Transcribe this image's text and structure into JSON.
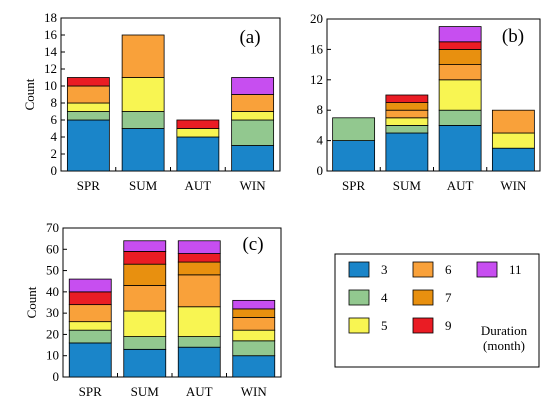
{
  "chart_data": [
    {
      "type": "bar",
      "stacked": true,
      "panel_label": "(a)",
      "ylabel": "Count",
      "ylim": [
        0,
        18
      ],
      "yticks": [
        0,
        2,
        4,
        6,
        8,
        10,
        12,
        14,
        16,
        18
      ],
      "categories": [
        "SPR",
        "SUM",
        "AUT",
        "WIN"
      ],
      "series": [
        {
          "name": "3",
          "values": [
            6,
            5,
            4,
            3
          ]
        },
        {
          "name": "4",
          "values": [
            1,
            2,
            0,
            3
          ]
        },
        {
          "name": "5",
          "values": [
            1,
            4,
            1,
            1
          ]
        },
        {
          "name": "6",
          "values": [
            2,
            5,
            0,
            2
          ]
        },
        {
          "name": "7",
          "values": [
            0,
            0,
            0,
            0
          ]
        },
        {
          "name": "9",
          "values": [
            1,
            0,
            1,
            0
          ]
        },
        {
          "name": "11",
          "values": [
            0,
            0,
            0,
            2
          ]
        }
      ]
    },
    {
      "type": "bar",
      "stacked": true,
      "panel_label": "(b)",
      "ylabel": "",
      "ylim": [
        0,
        20
      ],
      "yticks": [
        0,
        4,
        8,
        12,
        16,
        20
      ],
      "categories": [
        "SPR",
        "SUM",
        "AUT",
        "WIN"
      ],
      "series": [
        {
          "name": "3",
          "values": [
            4,
            5,
            6,
            3
          ]
        },
        {
          "name": "4",
          "values": [
            3,
            1,
            2,
            0
          ]
        },
        {
          "name": "5",
          "values": [
            0,
            1,
            4,
            2
          ]
        },
        {
          "name": "6",
          "values": [
            0,
            1,
            2,
            3
          ]
        },
        {
          "name": "7",
          "values": [
            0,
            1,
            2,
            0
          ]
        },
        {
          "name": "9",
          "values": [
            0,
            1,
            1,
            0
          ]
        },
        {
          "name": "11",
          "values": [
            0,
            0,
            2,
            0
          ]
        }
      ]
    },
    {
      "type": "bar",
      "stacked": true,
      "panel_label": "(c)",
      "ylabel": "Count",
      "ylim": [
        0,
        70
      ],
      "yticks": [
        0,
        10,
        20,
        30,
        40,
        50,
        60,
        70
      ],
      "categories": [
        "SPR",
        "SUM",
        "AUT",
        "WIN"
      ],
      "series": [
        {
          "name": "3",
          "values": [
            16,
            13,
            14,
            10
          ]
        },
        {
          "name": "4",
          "values": [
            6,
            6,
            5,
            7
          ]
        },
        {
          "name": "5",
          "values": [
            4,
            12,
            14,
            5
          ]
        },
        {
          "name": "6",
          "values": [
            8,
            12,
            15,
            6
          ]
        },
        {
          "name": "7",
          "values": [
            0,
            10,
            6,
            4
          ]
        },
        {
          "name": "9",
          "values": [
            6,
            6,
            4,
            0
          ]
        },
        {
          "name": "11",
          "values": [
            6,
            5,
            6,
            4
          ]
        }
      ]
    }
  ],
  "legend": {
    "items": [
      {
        "label": "3",
        "color": "#1a85c9"
      },
      {
        "label": "6",
        "color": "#f9a13a"
      },
      {
        "label": "11",
        "color": "#c74ef0"
      },
      {
        "label": "4",
        "color": "#92c88f"
      },
      {
        "label": "7",
        "color": "#e8900f"
      },
      {
        "label": "5",
        "color": "#f8f552"
      },
      {
        "label": "9",
        "color": "#ea1c24"
      }
    ],
    "title_lines": [
      "Duration",
      "(month)"
    ]
  },
  "colors": {
    "3": "#1a85c9",
    "4": "#92c88f",
    "5": "#f8f552",
    "6": "#f9a13a",
    "7": "#e8900f",
    "9": "#ea1c24",
    "11": "#c74ef0"
  }
}
